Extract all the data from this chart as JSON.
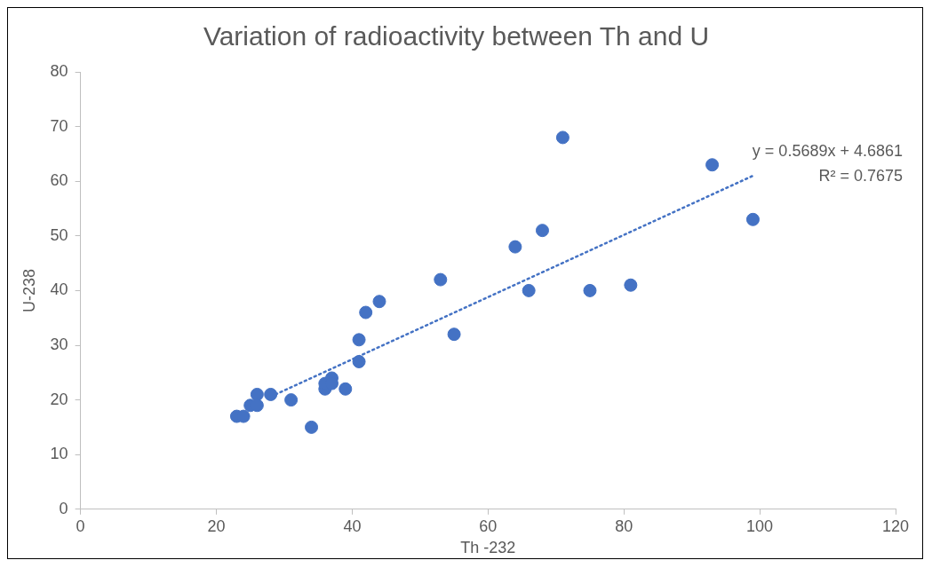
{
  "chart_data": {
    "type": "scatter",
    "title": "Variation of radioactivity between Th and U",
    "xlabel": "Th -232",
    "ylabel": "U-238",
    "xlim": [
      0,
      120
    ],
    "xticks": [
      0,
      20,
      40,
      60,
      80,
      100,
      120
    ],
    "ylim": [
      0,
      80
    ],
    "yticks": [
      0,
      10,
      20,
      30,
      40,
      50,
      60,
      70,
      80
    ],
    "grid": false,
    "legend": false,
    "marker": "circle",
    "annotations": [
      "y = 0.5689x + 4.6861",
      "R² = 0.7675"
    ],
    "series": [
      {
        "color": "#4472c4",
        "x": [
          23,
          24,
          25,
          26,
          26,
          28,
          31,
          34,
          36,
          36,
          37,
          37,
          39,
          41,
          41,
          42,
          44,
          53,
          55,
          64,
          66,
          68,
          71,
          75,
          81,
          93,
          99
        ],
        "values": [
          17,
          17,
          19,
          21,
          19,
          21,
          20,
          15,
          22,
          23,
          24,
          23,
          22,
          31,
          27,
          36,
          38,
          42,
          32,
          48,
          40,
          51,
          68,
          40,
          41,
          63,
          53
        ]
      },
      {
        "type": "line",
        "color": "#4472c4",
        "line_style": "dotted",
        "marker": "none",
        "x": [
          28,
          99
        ],
        "values": [
          20.6,
          61.0
        ]
      }
    ]
  }
}
